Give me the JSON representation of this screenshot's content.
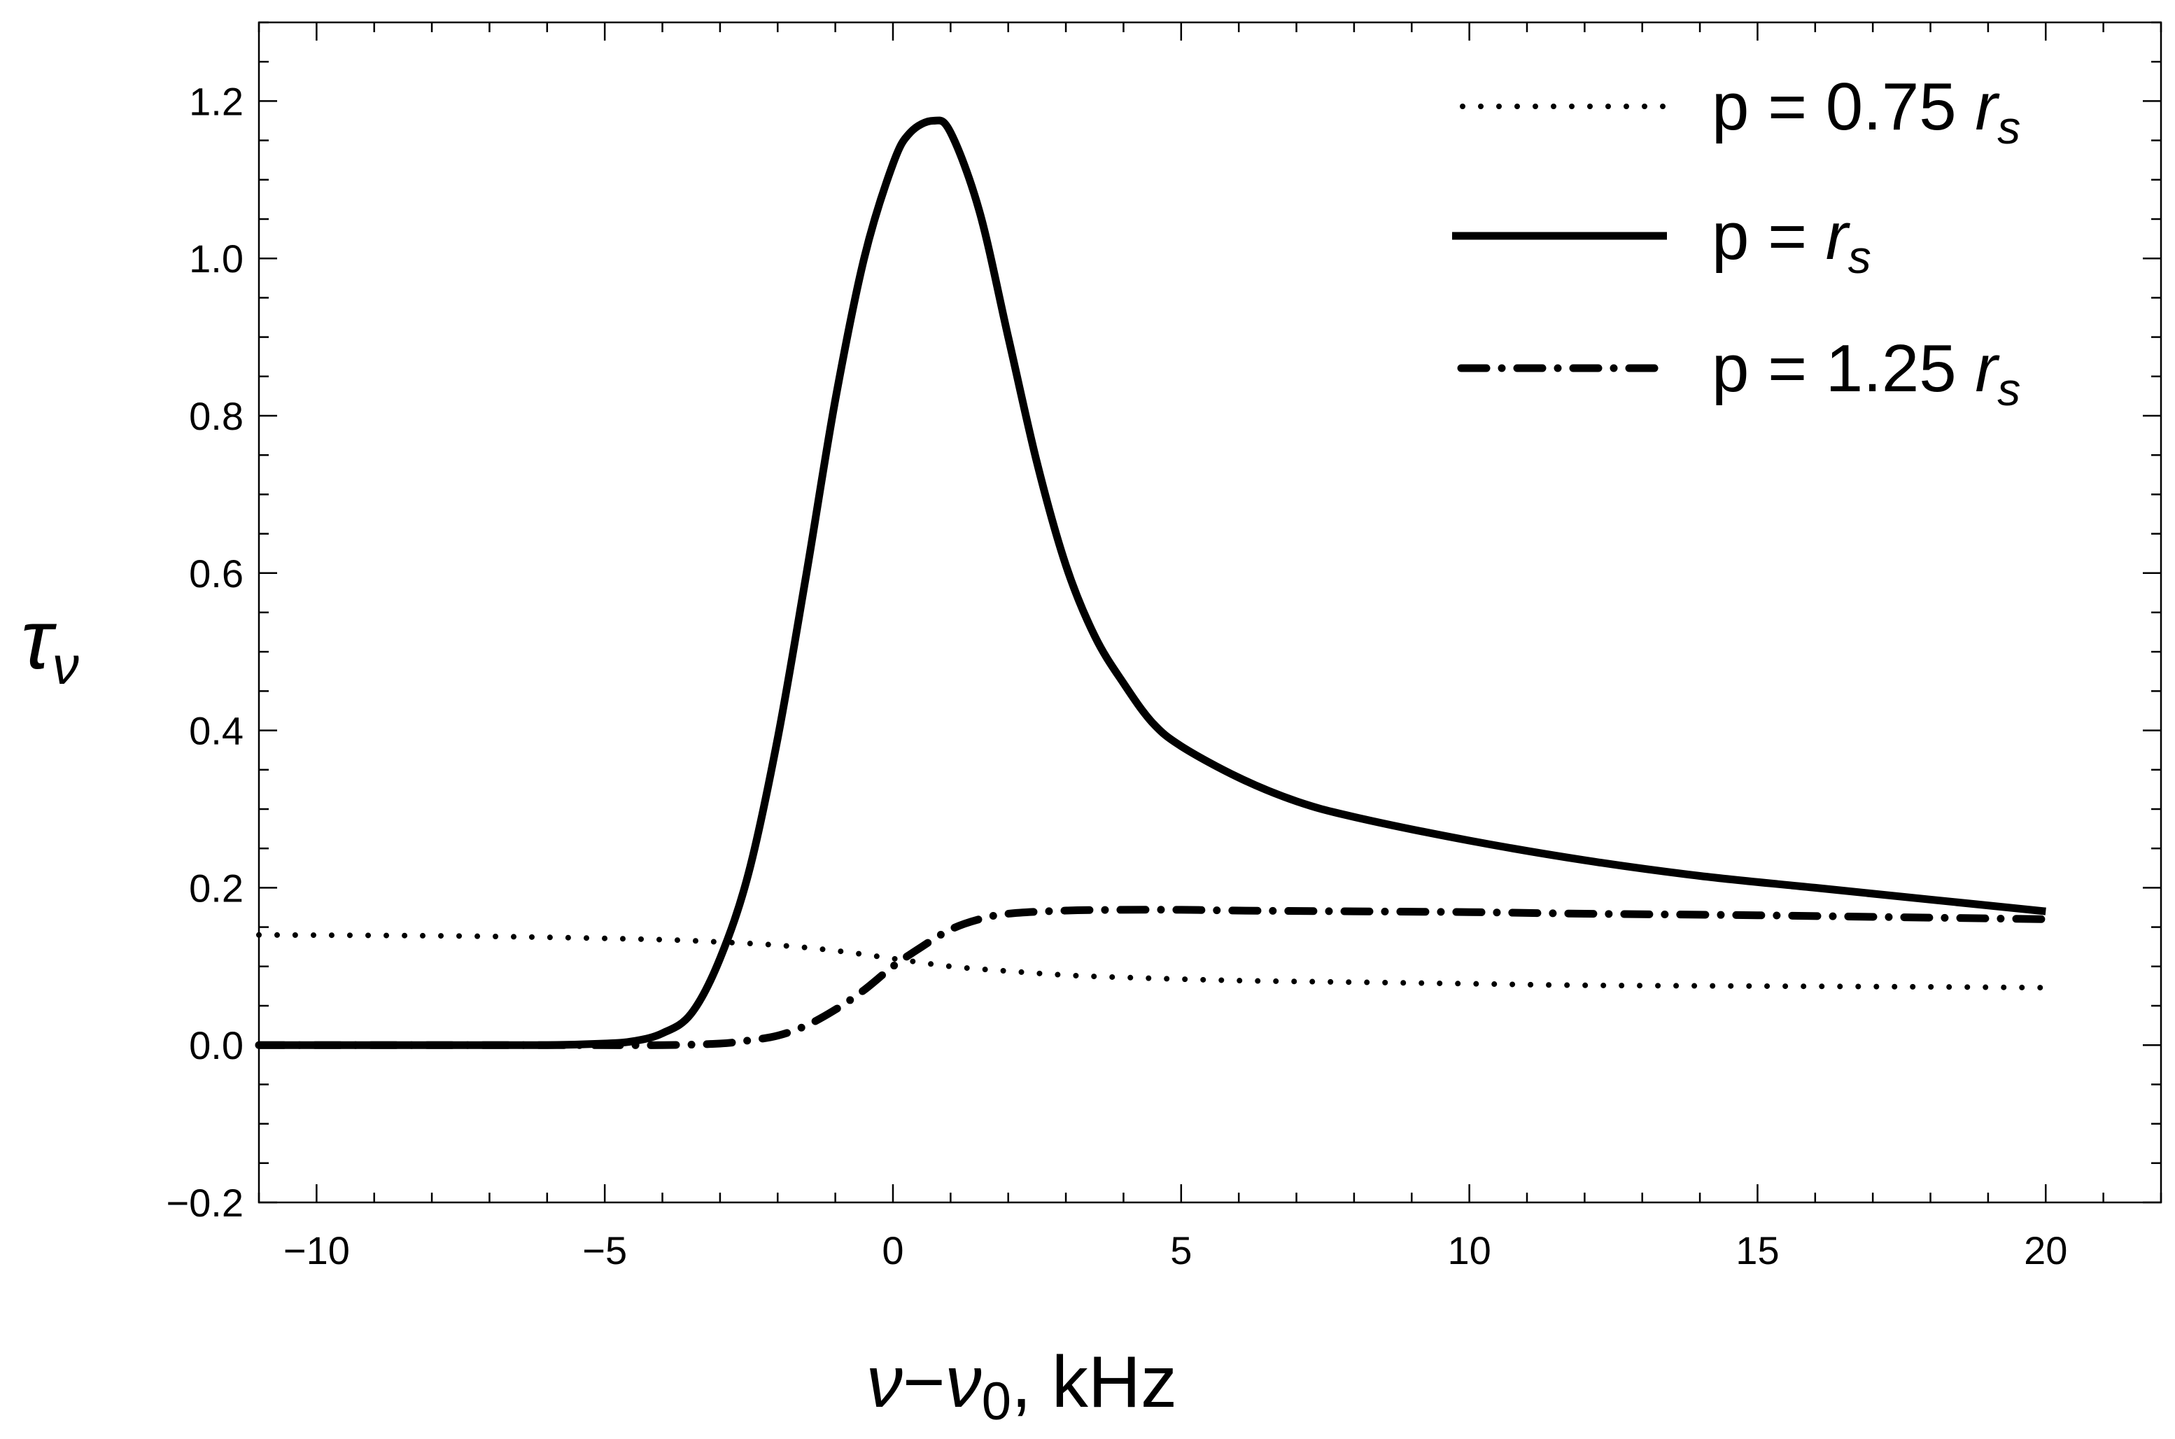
{
  "chart_data": {
    "type": "line",
    "title": "",
    "xlabel": {
      "var": "ν",
      "minus": "−",
      "var0": "ν",
      "sub": "0",
      "unit": ", kHz"
    },
    "ylabel": {
      "var": "τ",
      "sub": "ν"
    },
    "xlim": [
      -11,
      22
    ],
    "ylim": [
      -0.2,
      1.3
    ],
    "x_ticks": [
      {
        "value": -10,
        "label": "−10"
      },
      {
        "value": -5,
        "label": "−5"
      },
      {
        "value": 0,
        "label": "0"
      },
      {
        "value": 5,
        "label": "5"
      },
      {
        "value": 10,
        "label": "10"
      },
      {
        "value": 15,
        "label": "15"
      },
      {
        "value": 20,
        "label": "20"
      }
    ],
    "y_ticks": [
      {
        "value": -0.2,
        "label": "−0.2"
      },
      {
        "value": 0.0,
        "label": "0.0"
      },
      {
        "value": 0.2,
        "label": "0.2"
      },
      {
        "value": 0.4,
        "label": "0.4"
      },
      {
        "value": 0.6,
        "label": "0.6"
      },
      {
        "value": 0.8,
        "label": "0.8"
      },
      {
        "value": 1.0,
        "label": "1.0"
      },
      {
        "value": 1.2,
        "label": "1.2"
      }
    ],
    "grid": false,
    "legend_position": "top-right",
    "series": [
      {
        "name": "p = 0.75 r_s",
        "legend": {
          "prefix": "p = 0.75 ",
          "var": "r",
          "sub": "s"
        },
        "style": "dotted",
        "x": [
          -11,
          -8,
          -6,
          -4,
          -3,
          -2,
          -1,
          0,
          1,
          2,
          3,
          4,
          6,
          8,
          10,
          12,
          15,
          18,
          20
        ],
        "y": [
          0.14,
          0.139,
          0.137,
          0.134,
          0.131,
          0.127,
          0.12,
          0.11,
          0.1,
          0.094,
          0.089,
          0.086,
          0.082,
          0.08,
          0.078,
          0.076,
          0.075,
          0.074,
          0.073
        ]
      },
      {
        "name": "p = r_s",
        "legend": {
          "prefix": "p = ",
          "var": "r",
          "sub": "s"
        },
        "style": "solid",
        "x": [
          -11,
          -8,
          -6,
          -5,
          -4.5,
          -4,
          -3.5,
          -3,
          -2.5,
          -2,
          -1.5,
          -1,
          -0.5,
          0,
          0.3,
          0.7,
          1,
          1.5,
          2,
          2.5,
          3,
          3.5,
          4,
          4.5,
          5,
          6,
          7,
          8,
          10,
          12,
          14,
          16,
          18,
          20
        ],
        "y": [
          0.0,
          0.0,
          0.0,
          0.002,
          0.005,
          0.015,
          0.04,
          0.11,
          0.22,
          0.39,
          0.6,
          0.82,
          1.0,
          1.12,
          1.16,
          1.175,
          1.16,
          1.06,
          0.9,
          0.74,
          0.61,
          0.52,
          0.46,
          0.41,
          0.38,
          0.34,
          0.31,
          0.29,
          0.26,
          0.235,
          0.215,
          0.2,
          0.185,
          0.17
        ]
      },
      {
        "name": "p = 1.25 r_s",
        "legend": {
          "prefix": "p = 1.25 ",
          "var": "r",
          "sub": "s"
        },
        "style": "dashdot",
        "x": [
          -11,
          -8,
          -6,
          -4,
          -3,
          -2.5,
          -2,
          -1.5,
          -1,
          -0.5,
          0,
          0.5,
          1,
          1.5,
          2,
          3,
          4,
          5,
          6,
          8,
          10,
          12,
          15,
          18,
          20
        ],
        "y": [
          0.0,
          0.0,
          0.0,
          0.0,
          0.002,
          0.006,
          0.012,
          0.025,
          0.045,
          0.07,
          0.1,
          0.125,
          0.147,
          0.16,
          0.167,
          0.171,
          0.172,
          0.172,
          0.171,
          0.17,
          0.169,
          0.167,
          0.165,
          0.162,
          0.16
        ]
      }
    ]
  }
}
